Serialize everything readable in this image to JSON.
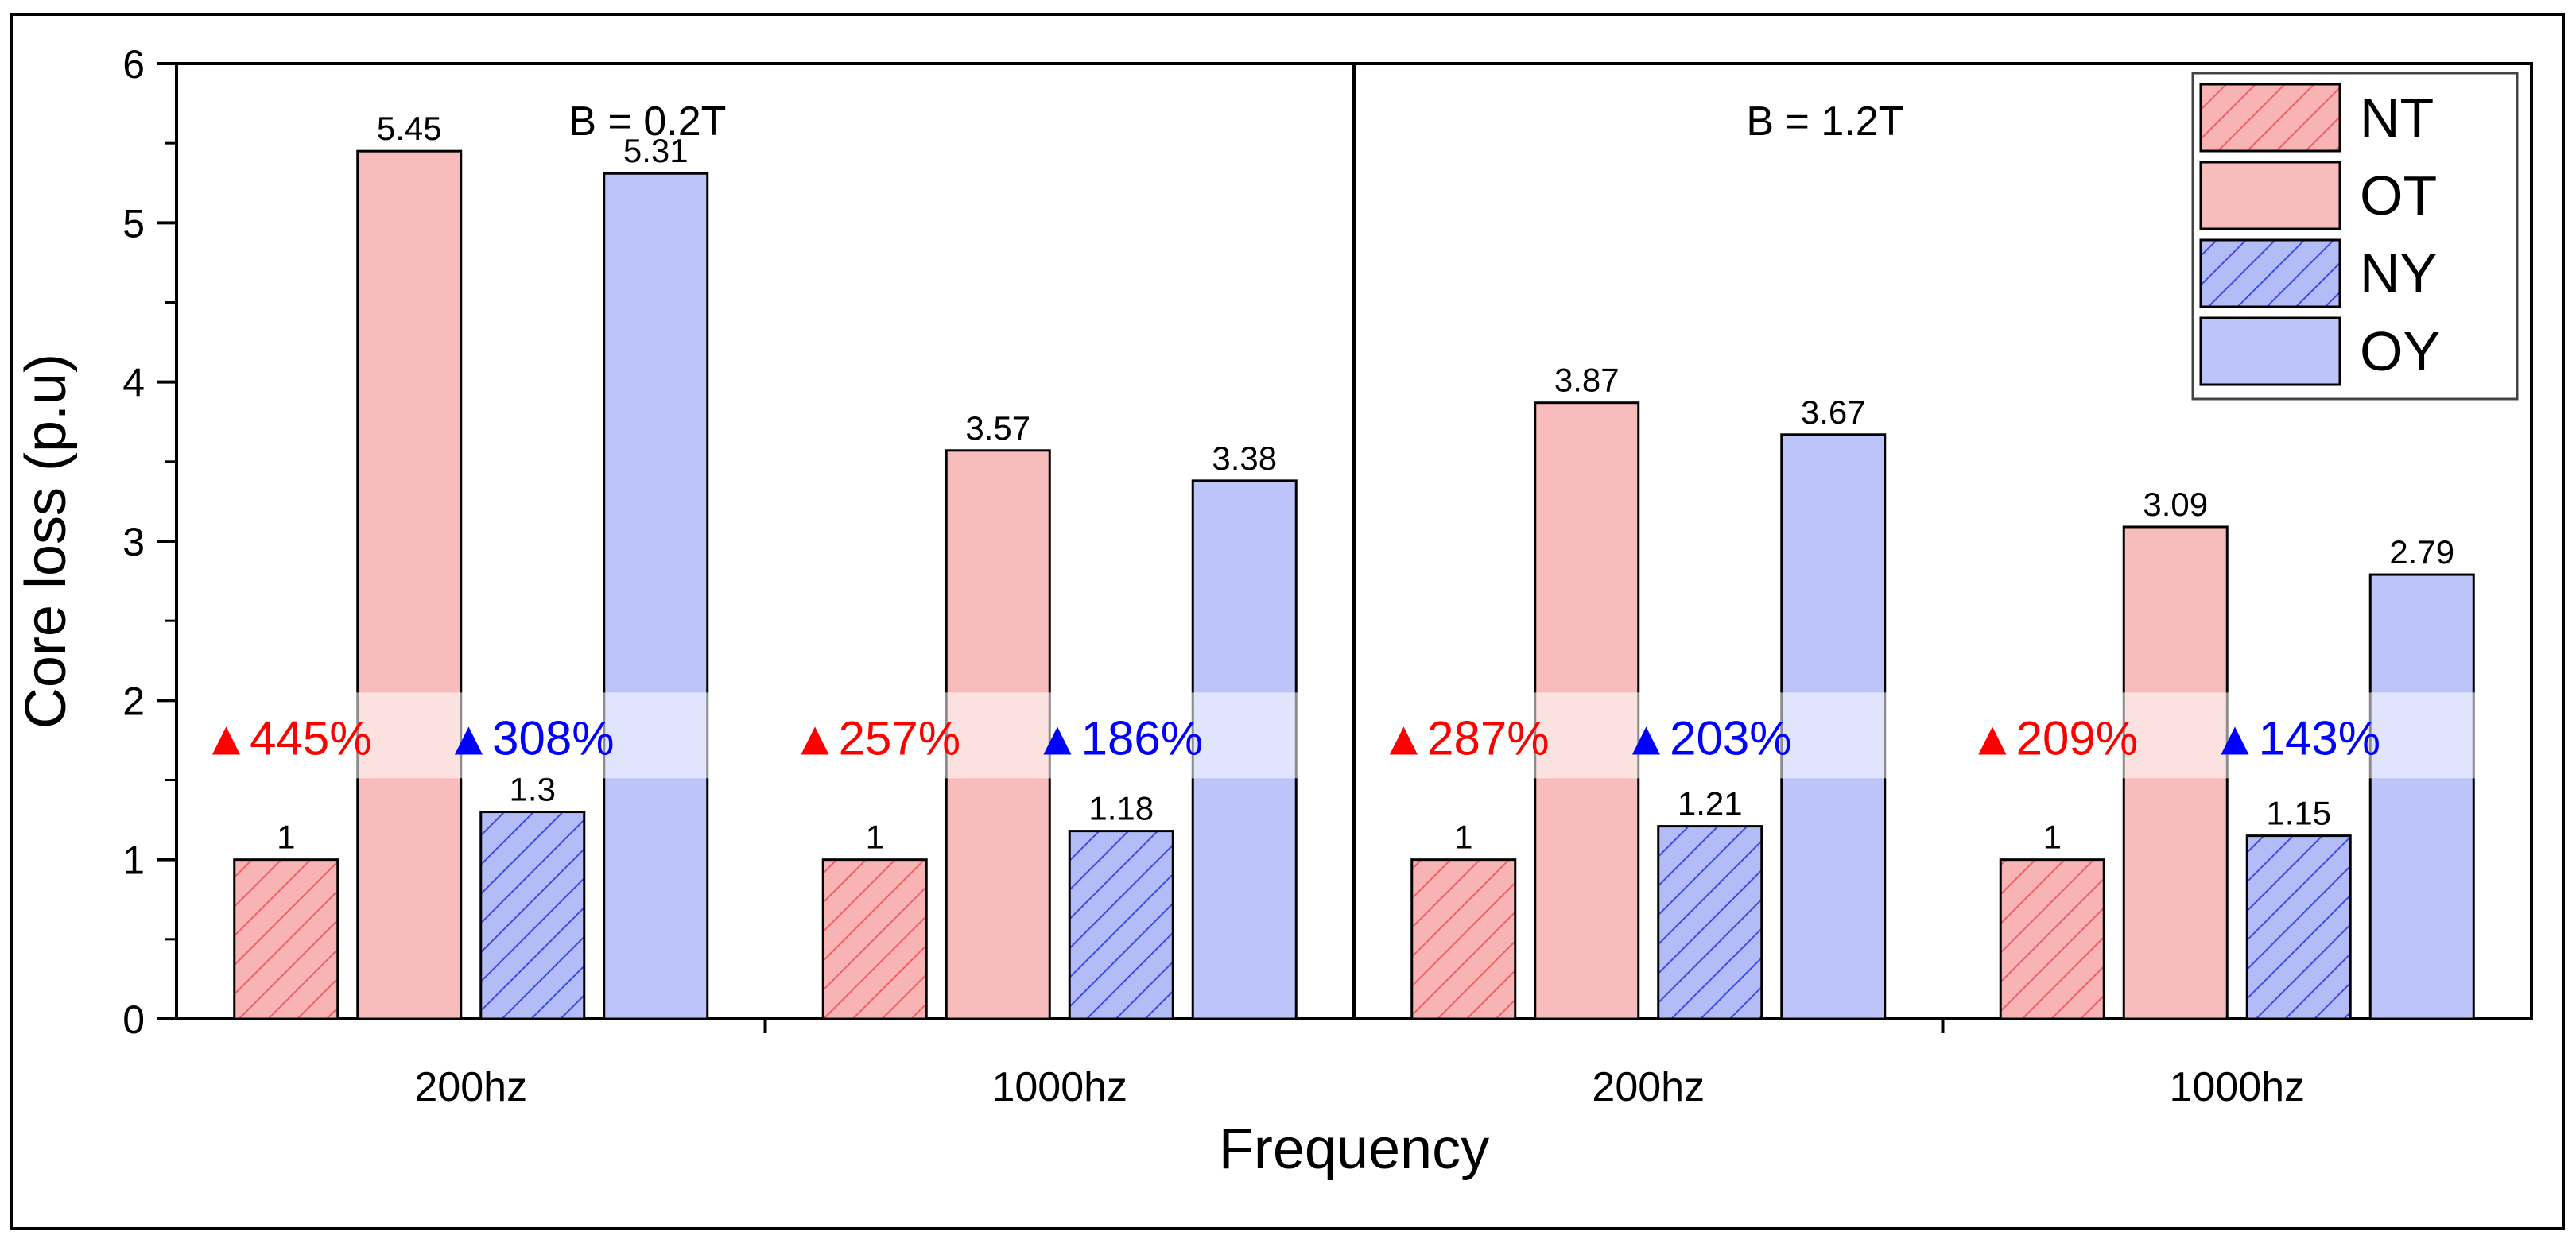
{
  "chart_data": {
    "type": "bar",
    "xlabel": "Frequency",
    "ylabel": "Core loss (p.u)",
    "ylim": [
      0,
      6
    ],
    "yticks": [
      0,
      1,
      2,
      3,
      4,
      5,
      6
    ],
    "legend_position": "top-right",
    "series": [
      {
        "name": "NT",
        "color": "#f8b4b4",
        "stroke": "#f06060",
        "hatched": true
      },
      {
        "name": "OT",
        "color": "#f9bcbc",
        "hatched": false
      },
      {
        "name": "NY",
        "color": "#b4bcf8",
        "stroke": "#3c4ce6",
        "hatched": true
      },
      {
        "name": "OY",
        "color": "#bcc4fa",
        "hatched": false
      }
    ],
    "panels": [
      {
        "label": "B = 0.2T",
        "groups": [
          {
            "category": "200hz",
            "values": [
              1,
              5.45,
              1.3,
              5.31
            ],
            "labels": [
              "1",
              "5.45",
              "1.3",
              "5.31"
            ],
            "increase_T": "445%",
            "increase_Y": "308%"
          },
          {
            "category": "1000hz",
            "values": [
              1,
              3.57,
              1.18,
              3.38
            ],
            "labels": [
              "1",
              "3.57",
              "1.18",
              "3.38"
            ],
            "increase_T": "257%",
            "increase_Y": "186%"
          }
        ]
      },
      {
        "label": "B = 1.2T",
        "groups": [
          {
            "category": "200hz",
            "values": [
              1,
              3.87,
              1.21,
              3.67
            ],
            "labels": [
              "1",
              "3.87",
              "1.21",
              "3.67"
            ],
            "increase_T": "287%",
            "increase_Y": "203%"
          },
          {
            "category": "1000hz",
            "values": [
              1,
              3.09,
              1.15,
              2.79
            ],
            "labels": [
              "1",
              "3.09",
              "1.15",
              "2.79"
            ],
            "increase_T": "209%",
            "increase_Y": "143%"
          }
        ]
      }
    ],
    "increase_marker": "▲",
    "increase_colors": {
      "T": "#ff0000",
      "Y": "#0000ff"
    }
  }
}
